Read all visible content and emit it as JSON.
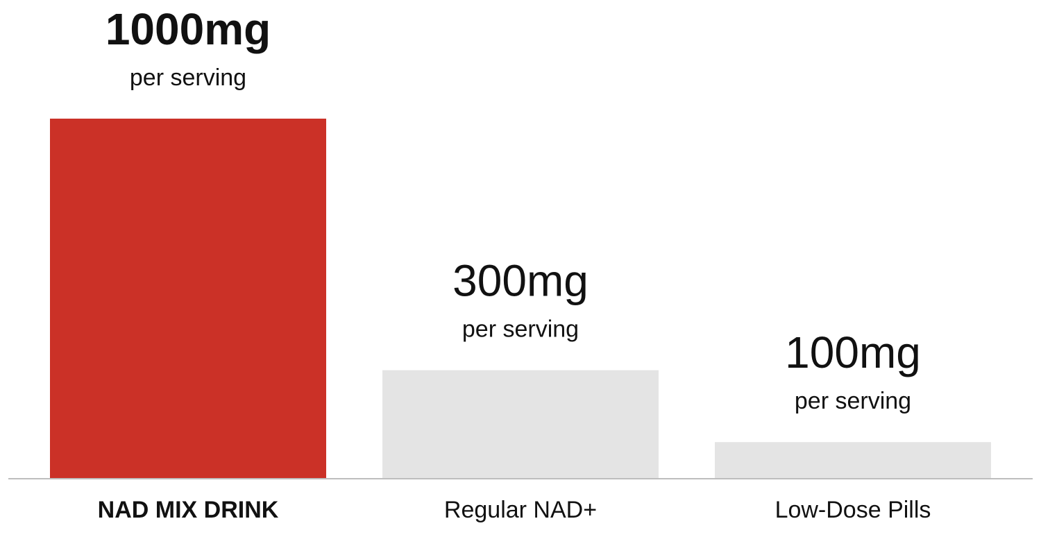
{
  "chart_data": {
    "type": "bar",
    "categories": [
      "NAD MIX DRINK",
      "Regular NAD+",
      "Low-Dose Pills"
    ],
    "values": [
      1000,
      300,
      100
    ],
    "value_labels": [
      "1000mg",
      "300mg",
      "100mg"
    ],
    "sublabel": "per serving",
    "highlight_index": 0,
    "colors": {
      "highlight": "#CB3127",
      "default": "#E4E4E4",
      "baseline": "#BDBDBD",
      "text": "#111111"
    },
    "title": "",
    "xlabel": "",
    "ylabel": "",
    "ylim": [
      0,
      1000
    ],
    "grid": false,
    "legend": "none"
  }
}
